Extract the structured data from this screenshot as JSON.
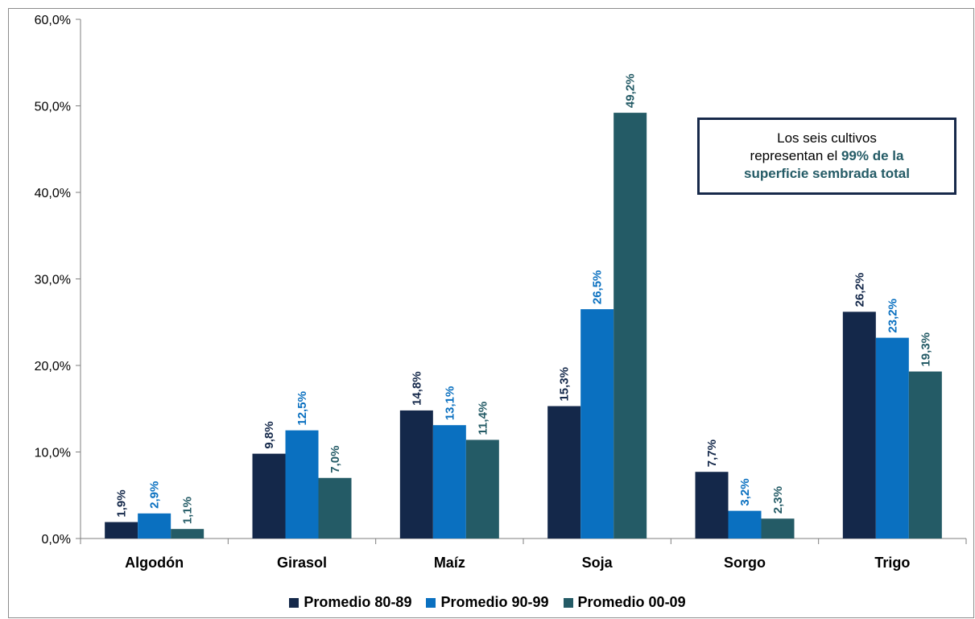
{
  "chart_data": {
    "type": "bar",
    "categories": [
      "Algodón",
      "Girasol",
      "Maíz",
      "Soja",
      "Sorgo",
      "Trigo"
    ],
    "series": [
      {
        "name": "Promedio 80-89",
        "values": [
          1.9,
          9.8,
          14.8,
          15.3,
          7.7,
          26.2
        ],
        "labels": [
          "1,9%",
          "9,8%",
          "14,8%",
          "15,3%",
          "7,7%",
          "26,2%"
        ],
        "color": "#14284a",
        "label_color": "#14284a"
      },
      {
        "name": "Promedio 90-99",
        "values": [
          2.9,
          12.5,
          13.1,
          26.5,
          3.2,
          23.2
        ],
        "labels": [
          "2,9%",
          "12,5%",
          "13,1%",
          "26,5%",
          "3,2%",
          "23,2%"
        ],
        "color": "#0a70c0",
        "label_color": "#0a70c0"
      },
      {
        "name": "Promedio 00-09",
        "values": [
          1.1,
          7.0,
          11.4,
          49.2,
          2.3,
          19.3
        ],
        "labels": [
          "1,1%",
          "7,0%",
          "11,4%",
          "49,2%",
          "2,3%",
          "19,3%"
        ],
        "color": "#245b66",
        "label_color": "#245b66"
      }
    ],
    "yticks": [
      0,
      10,
      20,
      30,
      40,
      50,
      60
    ],
    "ytick_labels": [
      "0,0%",
      "10,0%",
      "20,0%",
      "30,0%",
      "40,0%",
      "50,0%",
      "60,0%"
    ],
    "ylim": [
      0,
      60
    ],
    "grid": false,
    "legend_position": "bottom",
    "title": "",
    "xlabel": "",
    "ylabel": ""
  },
  "note": {
    "line1": "Los seis cultivos",
    "line2_plain": "representan el ",
    "line2_bold": "99% de la",
    "line3_bold": "superficie sembrada total"
  }
}
